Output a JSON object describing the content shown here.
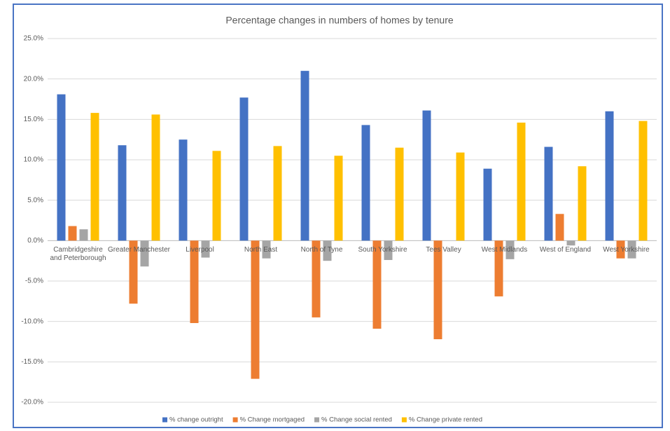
{
  "chart_data": {
    "type": "bar",
    "title": "Percentage changes in numbers of homes by tenure",
    "categories": [
      "Cambridgeshire and Peterborough",
      "Greater Manchester",
      "Liverpool",
      "North East",
      "North of Tyne",
      "South Yorkshire",
      "Tees Valley",
      "West Midlands",
      "West of England",
      "West Yorkshire"
    ],
    "series": [
      {
        "name": "% change outright",
        "color": "#4472c4",
        "values": [
          18.1,
          11.8,
          12.5,
          17.7,
          21.0,
          14.3,
          16.1,
          8.9,
          11.6,
          16.0
        ]
      },
      {
        "name": "% Change mortgaged",
        "color": "#ed7d31",
        "values": [
          1.8,
          -7.8,
          -10.2,
          -17.1,
          -9.5,
          -10.9,
          -12.2,
          -6.9,
          3.3,
          -2.2
        ]
      },
      {
        "name": "% Change social rented",
        "color": "#a5a5a5",
        "values": [
          1.4,
          -3.2,
          -2.1,
          -2.2,
          -2.5,
          -2.4,
          0,
          -2.3,
          -0.6,
          -2.2
        ]
      },
      {
        "name": "% Change private rented",
        "color": "#ffc000",
        "values": [
          15.8,
          15.6,
          11.1,
          11.7,
          10.5,
          11.5,
          10.9,
          14.6,
          9.2,
          14.8
        ]
      }
    ],
    "ylim": [
      -20,
      25
    ],
    "yticks": [
      {
        "value": -20,
        "label": "-20.0%"
      },
      {
        "value": -15,
        "label": "-15.0%"
      },
      {
        "value": -10,
        "label": "-10.0%"
      },
      {
        "value": -5,
        "label": "-5.0%"
      },
      {
        "value": 0,
        "label": "0.0%"
      },
      {
        "value": 5,
        "label": "5.0%"
      },
      {
        "value": 10,
        "label": "10.0%"
      },
      {
        "value": 15,
        "label": "15.0%"
      },
      {
        "value": 20,
        "label": "20.0%"
      },
      {
        "value": 25,
        "label": "25.0%"
      }
    ],
    "grid": true,
    "legend": "bottom"
  }
}
